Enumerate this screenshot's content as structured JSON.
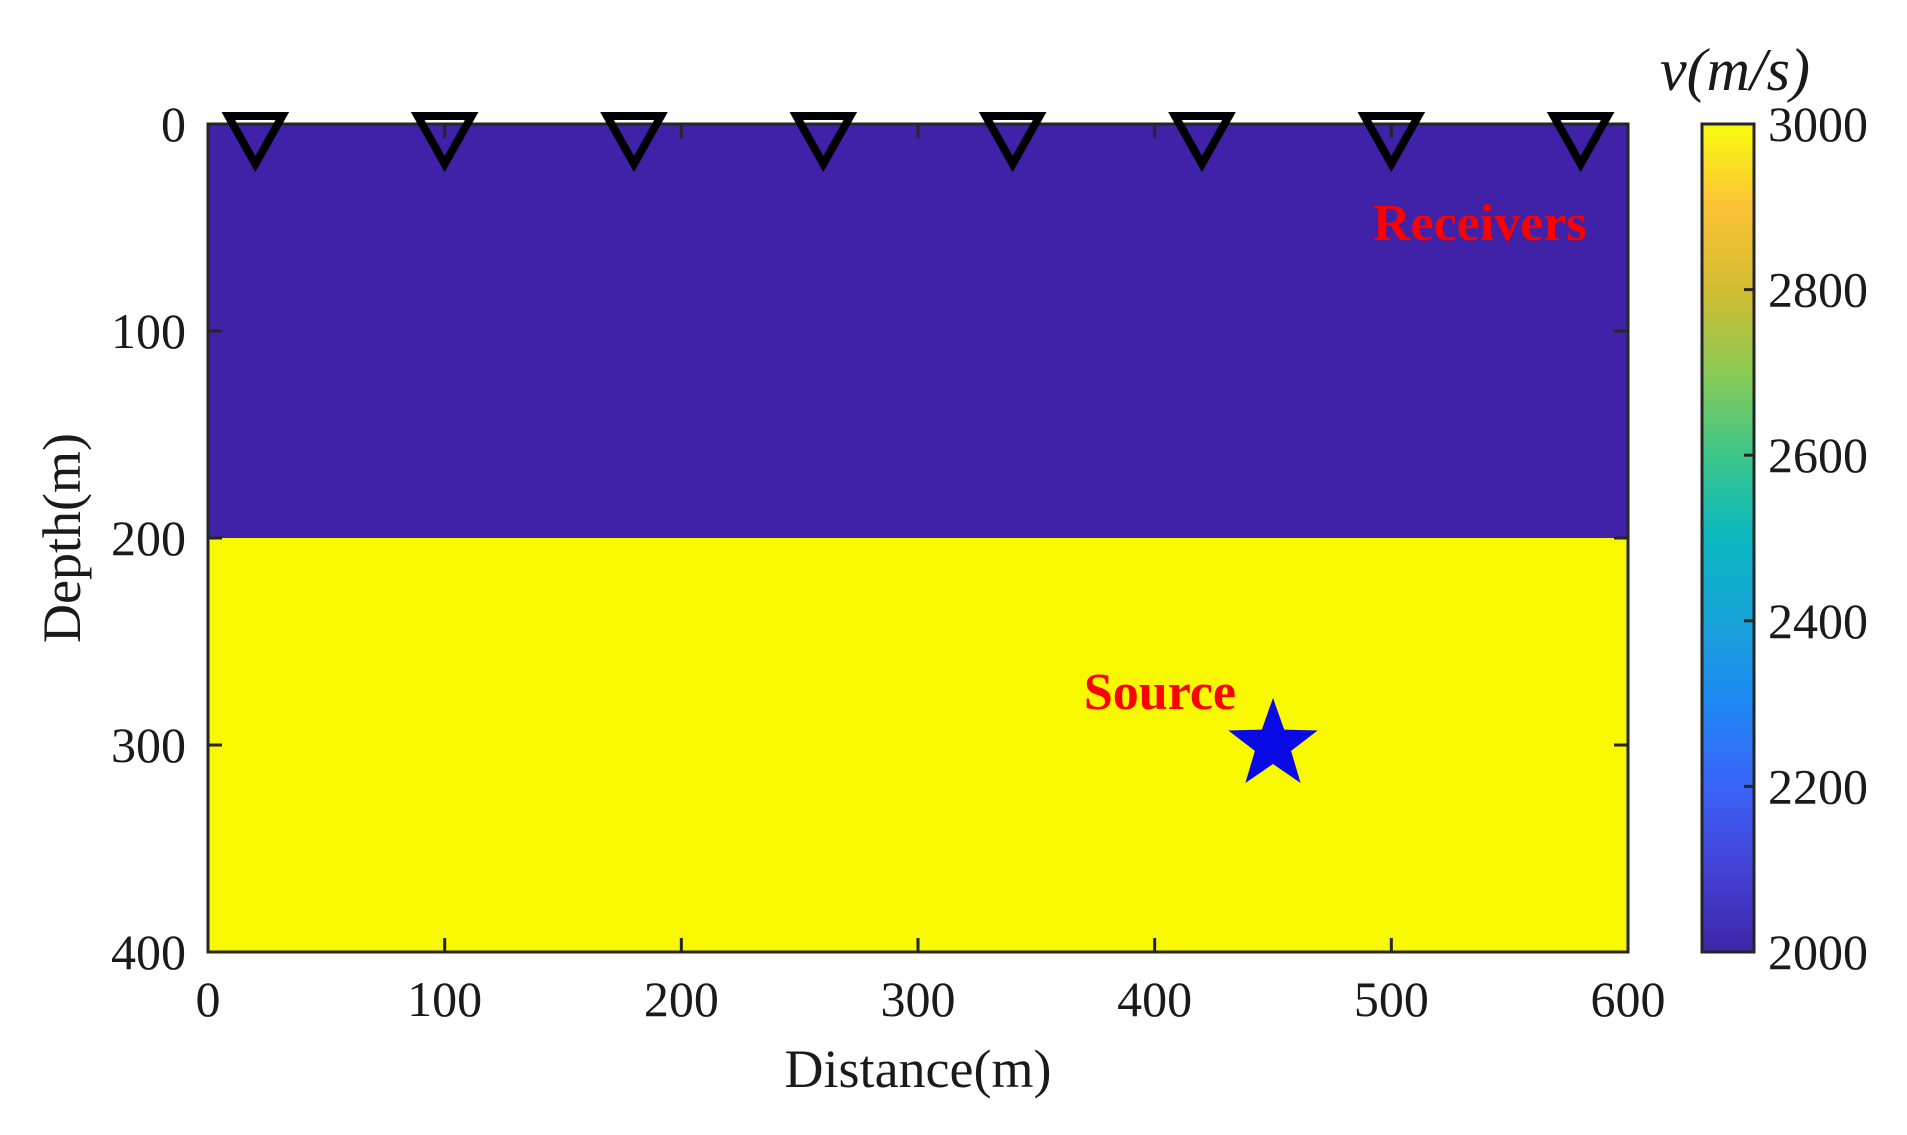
{
  "chart_data": {
    "type": "heatmap",
    "title": "",
    "xlabel": "Distance(m)",
    "ylabel": "Depth(m)",
    "xlim": [
      0,
      600
    ],
    "ylim": [
      0,
      400
    ],
    "y_reversed": true,
    "xticks": [
      "0",
      "100",
      "200",
      "300",
      "400",
      "500",
      "600"
    ],
    "yticks": [
      "0",
      "100",
      "200",
      "300",
      "400"
    ],
    "grid": false,
    "layers": [
      {
        "top": 0,
        "bottom": 200,
        "velocity": 2000,
        "color": "#3f22a8"
      },
      {
        "top": 200,
        "bottom": 400,
        "velocity": 3000,
        "color": "#f8f800"
      }
    ],
    "receivers": {
      "label": "Receivers",
      "x": [
        20,
        100,
        180,
        260,
        340,
        420,
        500,
        580
      ],
      "depth": 0
    },
    "source": {
      "label": "Source",
      "x": 450,
      "depth": 300,
      "color": "#0a0ae6"
    },
    "annotation_color": "#ff0000",
    "colorbar": {
      "title": "v(m/s)",
      "min": 2000,
      "max": 3000,
      "ticks": [
        "2000",
        "2200",
        "2400",
        "2600",
        "2800",
        "3000"
      ],
      "colormap": "parula"
    }
  }
}
